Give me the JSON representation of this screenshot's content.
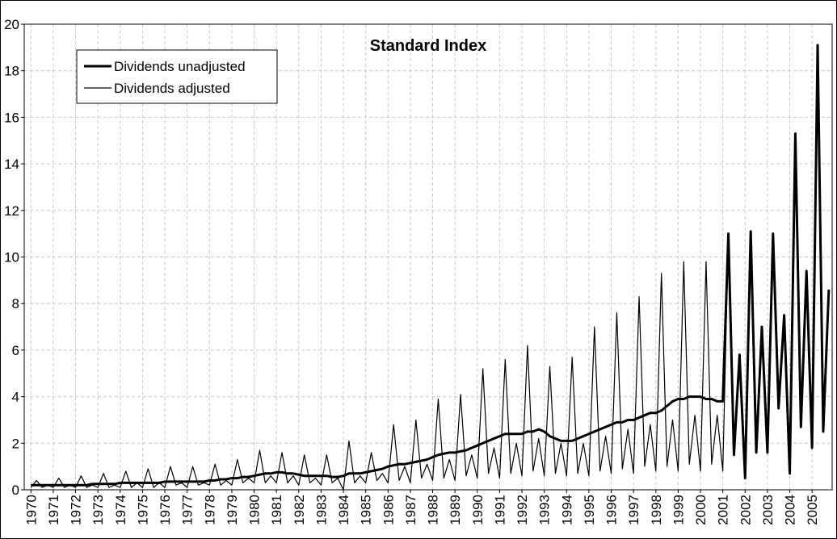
{
  "chart_data": {
    "type": "line",
    "title": "Standard Index",
    "x": [
      1970,
      1970.25,
      1970.5,
      1970.75,
      1971,
      1971.25,
      1971.5,
      1971.75,
      1972,
      1972.25,
      1972.5,
      1972.75,
      1973,
      1973.25,
      1973.5,
      1973.75,
      1974,
      1974.25,
      1974.5,
      1974.75,
      1975,
      1975.25,
      1975.5,
      1975.75,
      1976,
      1976.25,
      1976.5,
      1976.75,
      1977,
      1977.25,
      1977.5,
      1977.75,
      1978,
      1978.25,
      1978.5,
      1978.75,
      1979,
      1979.25,
      1979.5,
      1979.75,
      1980,
      1980.25,
      1980.5,
      1980.75,
      1981,
      1981.25,
      1981.5,
      1981.75,
      1982,
      1982.25,
      1982.5,
      1982.75,
      1983,
      1983.25,
      1983.5,
      1983.75,
      1984,
      1984.25,
      1984.5,
      1984.75,
      1985,
      1985.25,
      1985.5,
      1985.75,
      1986,
      1986.25,
      1986.5,
      1986.75,
      1987,
      1987.25,
      1987.5,
      1987.75,
      1988,
      1988.25,
      1988.5,
      1988.75,
      1989,
      1989.25,
      1989.5,
      1989.75,
      1990,
      1990.25,
      1990.5,
      1990.75,
      1991,
      1991.25,
      1991.5,
      1991.75,
      1992,
      1992.25,
      1992.5,
      1992.75,
      1993,
      1993.25,
      1993.5,
      1993.75,
      1994,
      1994.25,
      1994.5,
      1994.75,
      1995,
      1995.25,
      1995.5,
      1995.75,
      1996,
      1996.25,
      1996.5,
      1996.75,
      1997,
      1997.25,
      1997.5,
      1997.75,
      1998,
      1998.25,
      1998.5,
      1998.75,
      1999,
      1999.25,
      1999.5,
      1999.75,
      2000,
      2000.25,
      2000.5,
      2000.75,
      2001,
      2001.25,
      2001.5,
      2001.75,
      2002,
      2002.25,
      2002.5,
      2002.75,
      2003,
      2003.25,
      2003.5,
      2003.75,
      2004,
      2004.25,
      2004.5,
      2004.75,
      2005,
      2005.25,
      2005.5,
      2005.75
    ],
    "series": [
      {
        "name": "Dividends unadjusted",
        "color": "#000000",
        "width": 3,
        "values": [
          0.2,
          0.2,
          0.2,
          0.2,
          0.2,
          0.2,
          0.2,
          0.2,
          0.2,
          0.2,
          0.2,
          0.25,
          0.25,
          0.25,
          0.25,
          0.25,
          0.3,
          0.3,
          0.3,
          0.3,
          0.3,
          0.3,
          0.3,
          0.3,
          0.35,
          0.35,
          0.35,
          0.35,
          0.35,
          0.35,
          0.35,
          0.35,
          0.4,
          0.4,
          0.45,
          0.45,
          0.5,
          0.5,
          0.55,
          0.55,
          0.6,
          0.65,
          0.7,
          0.7,
          0.75,
          0.75,
          0.7,
          0.7,
          0.65,
          0.6,
          0.6,
          0.6,
          0.6,
          0.6,
          0.55,
          0.55,
          0.6,
          0.7,
          0.7,
          0.7,
          0.75,
          0.8,
          0.85,
          0.9,
          1.0,
          1.05,
          1.1,
          1.1,
          1.15,
          1.2,
          1.25,
          1.3,
          1.4,
          1.5,
          1.55,
          1.6,
          1.6,
          1.65,
          1.7,
          1.8,
          1.9,
          2.0,
          2.1,
          2.2,
          2.3,
          2.4,
          2.4,
          2.4,
          2.4,
          2.5,
          2.5,
          2.6,
          2.5,
          2.3,
          2.2,
          2.1,
          2.1,
          2.1,
          2.2,
          2.3,
          2.4,
          2.5,
          2.6,
          2.7,
          2.8,
          2.9,
          2.9,
          3.0,
          3.0,
          3.1,
          3.2,
          3.3,
          3.3,
          3.4,
          3.6,
          3.8,
          3.9,
          3.9,
          4.0,
          4.0,
          4.0,
          3.9,
          3.9,
          3.8,
          3.8,
          11.0,
          1.5,
          5.8,
          0.5,
          11.1,
          1.6,
          7.0,
          1.6,
          11.0,
          3.5,
          7.5,
          0.7,
          15.3,
          2.7,
          9.4,
          1.8,
          19.1,
          2.5,
          8.6
        ]
      },
      {
        "name": "Dividends adjusted",
        "color": "#000000",
        "width": 1.2,
        "values": [
          0.1,
          0.4,
          0.1,
          0.2,
          0.1,
          0.5,
          0.1,
          0.2,
          0.1,
          0.6,
          0.1,
          0.2,
          0.1,
          0.7,
          0.1,
          0.2,
          0.1,
          0.8,
          0.1,
          0.3,
          0.1,
          0.9,
          0.1,
          0.3,
          0.1,
          1.0,
          0.2,
          0.3,
          0.1,
          1.0,
          0.2,
          0.3,
          0.2,
          1.1,
          0.2,
          0.4,
          0.2,
          1.3,
          0.3,
          0.5,
          0.3,
          1.7,
          0.3,
          0.6,
          0.3,
          1.6,
          0.3,
          0.6,
          0.2,
          1.5,
          0.3,
          0.5,
          0.2,
          1.5,
          0.3,
          0.5,
          0.0,
          2.1,
          0.3,
          0.6,
          0.3,
          1.6,
          0.4,
          0.7,
          0.3,
          2.8,
          0.4,
          1.0,
          0.3,
          3.0,
          0.5,
          1.1,
          0.4,
          3.9,
          0.5,
          1.3,
          0.4,
          4.1,
          0.6,
          1.5,
          0.5,
          5.2,
          0.7,
          1.8,
          0.5,
          5.6,
          0.7,
          2.0,
          0.6,
          6.2,
          0.8,
          2.2,
          0.6,
          5.3,
          0.7,
          2.0,
          0.6,
          5.7,
          0.7,
          2.0,
          0.6,
          7.0,
          0.8,
          2.3,
          0.7,
          7.6,
          0.9,
          2.6,
          0.7,
          8.3,
          1.0,
          2.8,
          0.8,
          9.3,
          1.0,
          3.0,
          0.8,
          9.8,
          1.1,
          3.2,
          0.8,
          9.8,
          1.1,
          3.2,
          0.8,
          11.0,
          1.5,
          5.8,
          0.5,
          11.1,
          1.6,
          7.0,
          1.6,
          11.0,
          3.5,
          7.5,
          0.7,
          15.3,
          2.7,
          9.4,
          1.8,
          19.1,
          2.5,
          8.6
        ]
      }
    ],
    "xlim": [
      1969.7,
      2005.9
    ],
    "xticks": [
      1970,
      1971,
      1972,
      1973,
      1974,
      1975,
      1976,
      1977,
      1978,
      1979,
      1980,
      1981,
      1982,
      1983,
      1984,
      1985,
      1986,
      1987,
      1988,
      1989,
      1990,
      1991,
      1992,
      1993,
      1994,
      1995,
      1996,
      1997,
      1998,
      1999,
      2000,
      2001,
      2002,
      2003,
      2004,
      2005
    ],
    "ylim": [
      0,
      20
    ],
    "yticks": [
      0,
      2,
      4,
      6,
      8,
      10,
      12,
      14,
      16,
      18,
      20
    ],
    "grid": true,
    "legend": "upper left"
  }
}
